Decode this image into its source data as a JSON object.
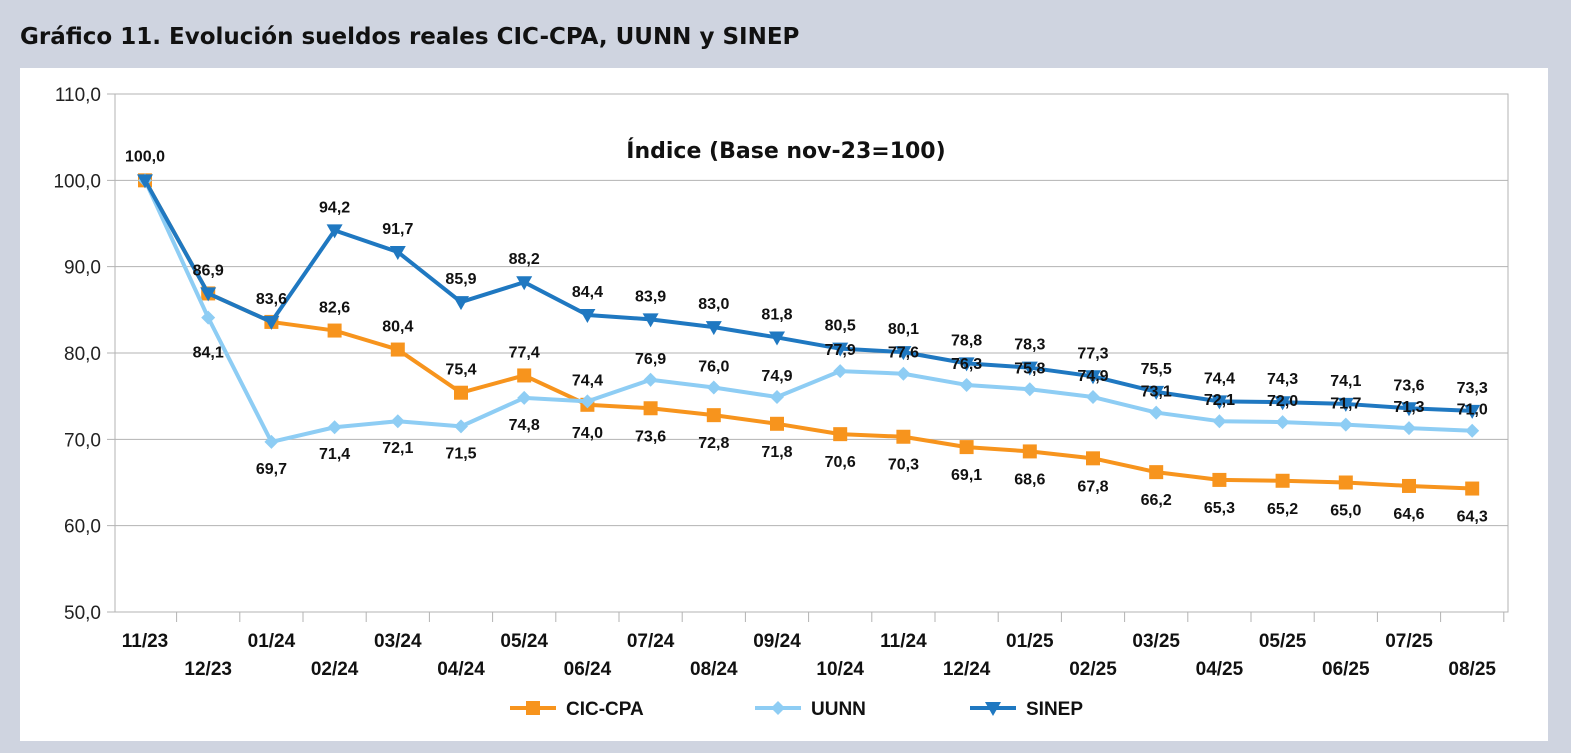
{
  "figure_title": "Gráfico 11. Evolución sueldos reales CIC-CPA, UUNN y SINEP",
  "chart_data": {
    "type": "line",
    "subtitle": "Índice (Base nov-23=100)",
    "categories": [
      "11/23",
      "12/23",
      "01/24",
      "02/24",
      "03/24",
      "04/24",
      "05/24",
      "06/24",
      "07/24",
      "08/24",
      "09/24",
      "10/24",
      "11/24",
      "12/24",
      "01/25",
      "02/25",
      "03/25",
      "04/25",
      "05/25",
      "06/25",
      "07/25",
      "08/25"
    ],
    "y_ticks": [
      "110,0",
      "100,0",
      "90,0",
      "80,0",
      "70,0",
      "60,0",
      "50,0"
    ],
    "ylim": [
      50,
      110
    ],
    "grid": true,
    "legend_position": "bottom",
    "series": [
      {
        "name": "CIC-CPA",
        "color": "#f7941d",
        "marker": "square",
        "values": [
          100.0,
          86.9,
          83.6,
          82.6,
          80.4,
          75.4,
          77.4,
          74.0,
          73.6,
          72.8,
          71.8,
          70.6,
          70.3,
          69.1,
          68.6,
          67.8,
          66.2,
          65.3,
          65.2,
          65.0,
          64.6,
          64.3
        ],
        "labels": [
          "100,0",
          "86,9",
          "83,6",
          "82,6",
          "80,4",
          "75,4",
          "77,4",
          "74,0",
          "73,6",
          "72,8",
          "71,8",
          "70,6",
          "70,3",
          "69,1",
          "68,6",
          "67,8",
          "66,2",
          "65,3",
          "65,2",
          "65,0",
          "64,6",
          "64,3"
        ]
      },
      {
        "name": "UUNN",
        "color": "#8ecdf4",
        "marker": "diamond",
        "values": [
          100.0,
          84.1,
          69.7,
          71.4,
          72.1,
          71.5,
          74.8,
          74.4,
          76.9,
          76.0,
          74.9,
          77.9,
          77.6,
          76.3,
          75.8,
          74.9,
          73.1,
          72.1,
          72.0,
          71.7,
          71.3,
          71.0
        ],
        "labels": [
          "100,0",
          "84,1",
          "69,7",
          "71,4",
          "72,1",
          "71,5",
          "74,8",
          "74,4",
          "76,9",
          "76,0",
          "74,9",
          "77,9",
          "77,6",
          "76,3",
          "75,8",
          "74,9",
          "73,1",
          "72,1",
          "72,0",
          "71,7",
          "71,3",
          "71,0"
        ]
      },
      {
        "name": "SINEP",
        "color": "#1f78c1",
        "marker": "triangle-down",
        "values": [
          100.0,
          86.9,
          83.6,
          94.2,
          91.7,
          85.9,
          88.2,
          84.4,
          83.9,
          83.0,
          81.8,
          80.5,
          80.1,
          78.8,
          78.3,
          77.3,
          75.5,
          74.4,
          74.3,
          74.1,
          73.6,
          73.3
        ],
        "labels": [
          "100,0",
          "86,9",
          "83,6",
          "94,2",
          "91,7",
          "85,9",
          "88,2",
          "84,4",
          "83,9",
          "83,0",
          "81,8",
          "80,5",
          "80,1",
          "78,8",
          "78,3",
          "77,3",
          "75,5",
          "74,4",
          "74,3",
          "74,1",
          "73,6",
          "73,3"
        ]
      }
    ]
  }
}
